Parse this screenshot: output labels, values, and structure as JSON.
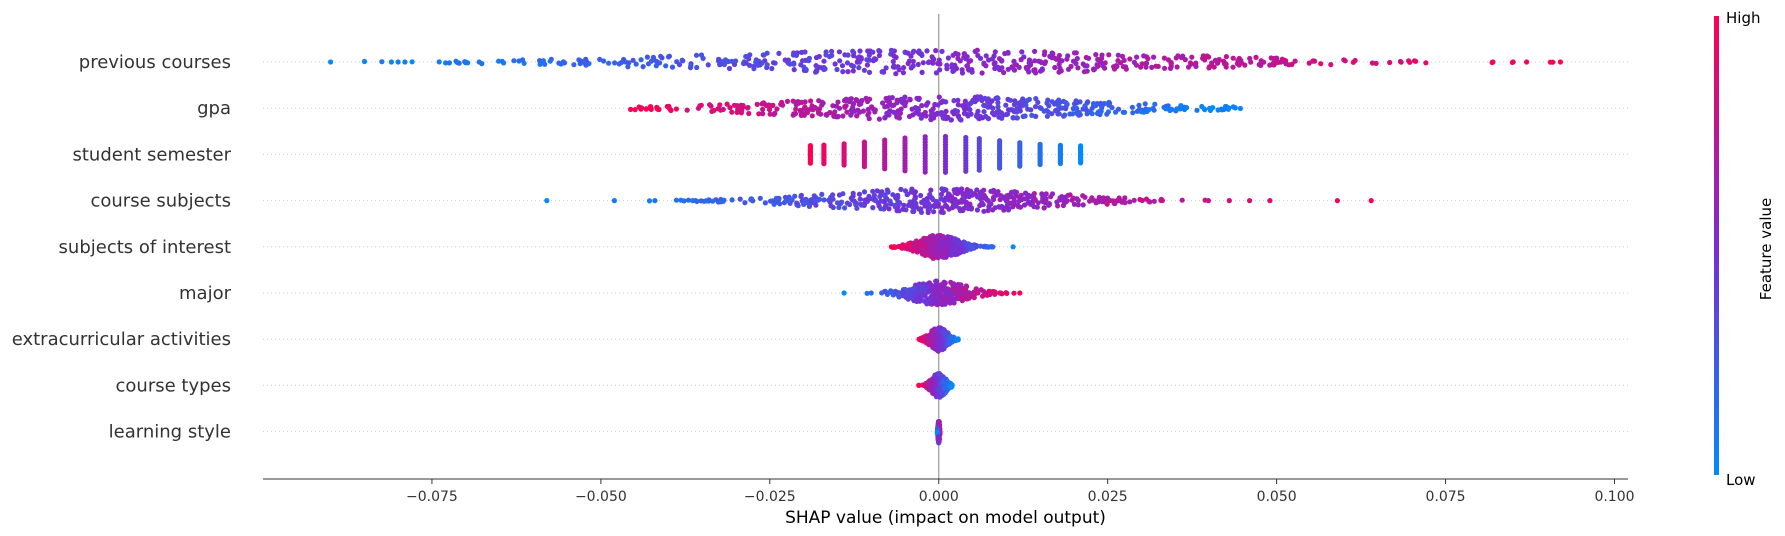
{
  "chart_data": {
    "type": "scatter",
    "subtype": "beeswarm",
    "xlabel": "SHAP value (impact on model output)",
    "xlim": [
      -0.1,
      0.102
    ],
    "xticks": [
      "−0.075",
      "−0.050",
      "−0.025",
      "0.000",
      "0.025",
      "0.050",
      "0.075",
      "0.100"
    ],
    "xtick_values": [
      -0.075,
      -0.05,
      -0.025,
      0.0,
      0.025,
      0.05,
      0.075,
      0.1
    ],
    "zero_line": 0.0,
    "colorbar": {
      "label": "Feature value",
      "high": "High",
      "low": "Low",
      "low_color": "#008bfb",
      "mid_color": "#7c2bd2",
      "high_color": "#ff0051"
    },
    "series": [
      {
        "name": "previous courses",
        "min": -0.09,
        "max": 0.092,
        "spread": 0.034,
        "density": 1.0,
        "direction": 1,
        "outliers": [
          -0.09,
          -0.081,
          -0.08,
          -0.079,
          -0.07,
          -0.068,
          0.082,
          0.085,
          0.087,
          0.092
        ]
      },
      {
        "name": "gpa",
        "min": -0.046,
        "max": 0.045,
        "spread": 0.022,
        "density": 0.95,
        "direction": -1,
        "outliers": []
      },
      {
        "name": "student semester",
        "discrete": [
          -0.019,
          -0.017,
          -0.014,
          -0.011,
          -0.008,
          -0.005,
          -0.002,
          0.001,
          0.004,
          0.006,
          0.009,
          0.012,
          0.015,
          0.018,
          0.021
        ],
        "direction": -1
      },
      {
        "name": "course subjects",
        "min": -0.058,
        "max": 0.064,
        "spread": 0.016,
        "density": 0.9,
        "direction": 1,
        "outliers": [
          -0.058,
          -0.048,
          -0.042,
          -0.036,
          -0.034,
          0.043,
          0.046,
          0.049,
          0.059,
          0.064
        ]
      },
      {
        "name": "subjects of interest",
        "min": -0.007,
        "max": 0.011,
        "spread": 0.0028,
        "density": 0.7,
        "direction": -1,
        "outliers": [
          -0.007,
          0.008,
          0.011
        ]
      },
      {
        "name": "major",
        "min": -0.014,
        "max": 0.012,
        "spread": 0.004,
        "density": 0.5,
        "direction": 1,
        "outliers": [
          -0.014,
          -0.01,
          0.009,
          0.01,
          0.012
        ]
      },
      {
        "name": "extracurricular activities",
        "min": -0.003,
        "max": 0.003,
        "spread": 0.0012,
        "density": 0.55,
        "direction": -1,
        "outliers": []
      },
      {
        "name": "course types",
        "min": -0.003,
        "max": 0.002,
        "spread": 0.001,
        "density": 0.5,
        "direction": -1,
        "outliers": []
      },
      {
        "name": "learning style",
        "min": -0.0002,
        "max": 0.0002,
        "spread": 0.0001,
        "density": 0.3,
        "direction": 1,
        "outliers": []
      }
    ]
  }
}
